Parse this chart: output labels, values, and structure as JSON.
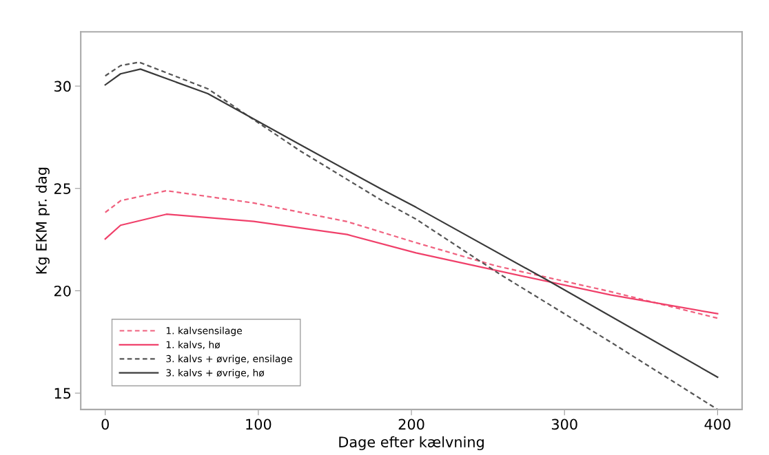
{
  "chart_data": {
    "type": "line",
    "xlabel": "Dage efter kælvning",
    "ylabel": "Kg EKM pr. dag",
    "xlim": [
      -16,
      416
    ],
    "ylim": [
      14.2,
      32.65
    ],
    "xticks": [
      0,
      100,
      200,
      300,
      400
    ],
    "yticks": [
      15,
      20,
      25,
      30
    ],
    "grid": false,
    "legend": "bottom left",
    "marker": "none",
    "series": [
      {
        "name": "1. kalvsensilage",
        "color": "#f0607e",
        "line_style": "dashed",
        "x": [
          0,
          10,
          40,
          97,
          158,
          203,
          255,
          330,
          400
        ],
        "values": [
          23.83,
          24.4,
          24.89,
          24.29,
          23.38,
          22.35,
          21.22,
          19.96,
          18.66
        ]
      },
      {
        "name": "1. kalvs, hø",
        "color": "#f0406a",
        "line_style": "solid",
        "x": [
          0,
          10,
          40,
          97,
          158,
          203,
          255,
          330,
          400
        ],
        "values": [
          22.53,
          23.2,
          23.74,
          23.39,
          22.75,
          21.85,
          21.0,
          19.8,
          18.88
        ]
      },
      {
        "name": "3. kalvs + øvrige, ensilage",
        "color": "#555555",
        "line_style": "dashed",
        "x": [
          0,
          10,
          22,
          67,
          127,
          180,
          203,
          258,
          330,
          400
        ],
        "values": [
          30.5,
          31.0,
          31.17,
          29.87,
          26.85,
          24.44,
          23.5,
          20.8,
          17.5,
          14.2
        ]
      },
      {
        "name": "3. kalvs + øvrige, hø",
        "color": "#3a3a3a",
        "line_style": "solid",
        "x": [
          0,
          10,
          23,
          67,
          127,
          180,
          203,
          288,
          400
        ],
        "values": [
          30.06,
          30.6,
          30.83,
          29.63,
          27.15,
          24.98,
          24.08,
          20.55,
          15.78
        ]
      }
    ]
  }
}
